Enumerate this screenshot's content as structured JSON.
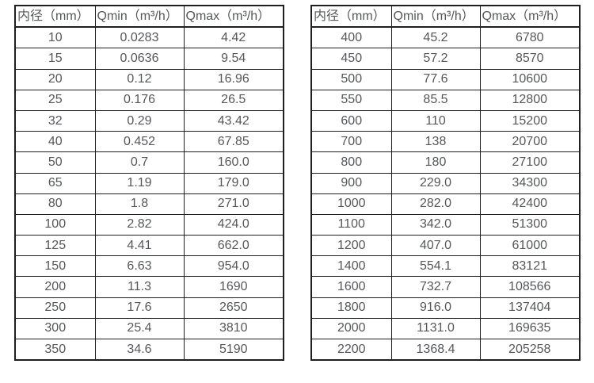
{
  "page": {
    "background_color": "#ffffff",
    "border_color": "#1f1f1f",
    "text_color": "#55575a"
  },
  "tables": [
    {
      "title": "flow-range-table-small-diameters",
      "headers": [
        "内径（mm）",
        "Qmin（m³/h）",
        "Qmax（m³/h）"
      ],
      "rows": [
        [
          "10",
          "0.0283",
          "4.42"
        ],
        [
          "15",
          "0.0636",
          "9.54"
        ],
        [
          "20",
          "0.12",
          "16.96"
        ],
        [
          "25",
          "0.176",
          "26.5"
        ],
        [
          "32",
          "0.29",
          "43.42"
        ],
        [
          "40",
          "0.452",
          "67.85"
        ],
        [
          "50",
          "0.7",
          "160.0"
        ],
        [
          "65",
          "1.19",
          "179.0"
        ],
        [
          "80",
          "1.8",
          "271.0"
        ],
        [
          "100",
          "2.82",
          "424.0"
        ],
        [
          "125",
          "4.41",
          "662.0"
        ],
        [
          "150",
          "6.63",
          "954.0"
        ],
        [
          "200",
          "11.3",
          "1690"
        ],
        [
          "250",
          "17.6",
          "2650"
        ],
        [
          "300",
          "25.4",
          "3810"
        ],
        [
          "350",
          "34.6",
          "5190"
        ]
      ]
    },
    {
      "title": "flow-range-table-large-diameters",
      "headers": [
        "内径（mm）",
        "Qmin（m³/h）",
        "Qmax（m³/h）"
      ],
      "rows": [
        [
          "400",
          "45.2",
          "6780"
        ],
        [
          "450",
          "57.2",
          "8570"
        ],
        [
          "500",
          "77.6",
          "10600"
        ],
        [
          "550",
          "85.5",
          "12800"
        ],
        [
          "600",
          "110",
          "15200"
        ],
        [
          "700",
          "138",
          "20700"
        ],
        [
          "800",
          "180",
          "27100"
        ],
        [
          "900",
          "229.0",
          "34300"
        ],
        [
          "1000",
          "282.0",
          "42400"
        ],
        [
          "1100",
          "342.0",
          "51300"
        ],
        [
          "1200",
          "407.0",
          "61000"
        ],
        [
          "1400",
          "554.1",
          "83121"
        ],
        [
          "1600",
          "732.7",
          "108566"
        ],
        [
          "1800",
          "916.0",
          "137404"
        ],
        [
          "2000",
          "1131.0",
          "169635"
        ],
        [
          "2200",
          "1368.4",
          "205258"
        ]
      ]
    }
  ]
}
